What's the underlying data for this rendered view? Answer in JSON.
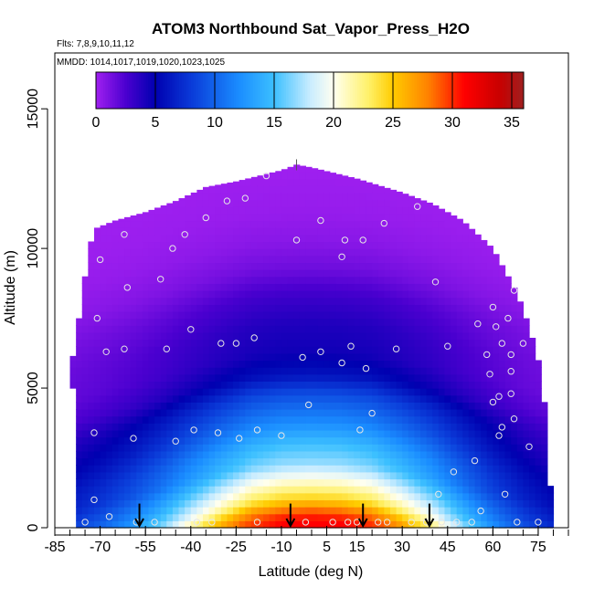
{
  "chart_data": {
    "type": "heatmap",
    "title": "ATOM3 Northbound Sat_Vapor_Press_H2O",
    "subtitle_flights": "Flts: 7,8,9,10,11,12",
    "subtitle_dates": "MMDD: 1014,1017,1019,1020,1023,1025",
    "xlabel": "Latitude (deg N)",
    "ylabel": "Altitude (m)",
    "xlim": [
      -85,
      85
    ],
    "ylim": [
      0,
      17000
    ],
    "x_ticks": [
      -85,
      -70,
      -55,
      -40,
      -25,
      -10,
      5,
      15,
      30,
      45,
      60,
      75
    ],
    "y_ticks": [
      0,
      5000,
      10000,
      15000
    ],
    "colorbar": {
      "range": [
        0,
        36
      ],
      "ticks": [
        0,
        5,
        10,
        15,
        20,
        25,
        30,
        35
      ],
      "stops": [
        {
          "value": 0,
          "color": "#a020f0"
        },
        {
          "value": 2.5,
          "color": "#4b00d0"
        },
        {
          "value": 5,
          "color": "#0000b0"
        },
        {
          "value": 8,
          "color": "#0a3ad8"
        },
        {
          "value": 12,
          "color": "#1a8cff"
        },
        {
          "value": 15,
          "color": "#3cc0ff"
        },
        {
          "value": 18,
          "color": "#c8ecff"
        },
        {
          "value": 20,
          "color": "#fffff0"
        },
        {
          "value": 23,
          "color": "#fff066"
        },
        {
          "value": 25,
          "color": "#ffcc00"
        },
        {
          "value": 28,
          "color": "#ff8000"
        },
        {
          "value": 31,
          "color": "#ff0000"
        },
        {
          "value": 34,
          "color": "#c80000"
        },
        {
          "value": 36,
          "color": "#a02020"
        }
      ]
    },
    "field_model": {
      "upper_boundary": [
        [
          -80,
          5500
        ],
        [
          -78,
          6800
        ],
        [
          -76,
          8200
        ],
        [
          -74,
          9800
        ],
        [
          -72,
          10700
        ],
        [
          -65,
          11000
        ],
        [
          -55,
          11300
        ],
        [
          -45,
          11700
        ],
        [
          -35,
          12200
        ],
        [
          -25,
          12400
        ],
        [
          -10,
          12800
        ],
        [
          -5,
          13000
        ],
        [
          0,
          12900
        ],
        [
          15,
          12500
        ],
        [
          30,
          12000
        ],
        [
          40,
          11600
        ],
        [
          50,
          11000
        ],
        [
          60,
          10000
        ],
        [
          68,
          8400
        ],
        [
          72,
          7200
        ],
        [
          75,
          6000
        ],
        [
          77,
          4500
        ],
        [
          78,
          3000
        ],
        [
          80,
          0
        ]
      ],
      "lower_limit_left": [
        [
          7000,
          -80
        ],
        [
          5500,
          -80
        ],
        [
          5000,
          -79
        ],
        [
          3500,
          -78
        ],
        [
          0,
          -77
        ]
      ],
      "equator_profile": [
        [
          0,
          31
        ],
        [
          300,
          29
        ],
        [
          700,
          25
        ],
        [
          1000,
          23
        ],
        [
          1500,
          20
        ],
        [
          2000,
          17
        ],
        [
          2700,
          15
        ],
        [
          3500,
          12
        ],
        [
          4500,
          9
        ],
        [
          5200,
          6
        ],
        [
          6000,
          4.5
        ],
        [
          7000,
          4
        ],
        [
          8000,
          3
        ],
        [
          9000,
          1.5
        ],
        [
          10000,
          0.7
        ],
        [
          11000,
          0.3
        ],
        [
          13000,
          0
        ]
      ],
      "latitude_scale": [
        [
          -80,
          0.4
        ],
        [
          -70,
          0.46
        ],
        [
          -60,
          0.54
        ],
        [
          -50,
          0.64
        ],
        [
          -40,
          0.76
        ],
        [
          -30,
          0.87
        ],
        [
          -20,
          0.95
        ],
        [
          -10,
          1.0
        ],
        [
          0,
          1.0
        ],
        [
          10,
          1.0
        ],
        [
          20,
          0.96
        ],
        [
          30,
          0.88
        ],
        [
          40,
          0.77
        ],
        [
          50,
          0.63
        ],
        [
          60,
          0.5
        ],
        [
          70,
          0.4
        ],
        [
          80,
          0.33
        ]
      ],
      "altitude_shift_m": [
        [
          -80,
          -1400
        ],
        [
          -60,
          -900
        ],
        [
          -40,
          -300
        ],
        [
          -20,
          200
        ],
        [
          0,
          300
        ],
        [
          20,
          200
        ],
        [
          40,
          -200
        ],
        [
          60,
          -700
        ],
        [
          80,
          -1200
        ]
      ]
    },
    "observation_points": [
      [
        -75,
        200
      ],
      [
        -72,
        1000
      ],
      [
        -72,
        3400
      ],
      [
        -71,
        7500
      ],
      [
        -70,
        9600
      ],
      [
        -68,
        6300
      ],
      [
        -67,
        400
      ],
      [
        -62,
        6400
      ],
      [
        -62,
        10500
      ],
      [
        -61,
        8600
      ],
      [
        -59,
        3200
      ],
      [
        -58,
        200
      ],
      [
        -52,
        200
      ],
      [
        -50,
        8900
      ],
      [
        -48,
        6400
      ],
      [
        -46,
        10000
      ],
      [
        -45,
        3100
      ],
      [
        -42,
        10500
      ],
      [
        -40,
        7100
      ],
      [
        -39,
        3500
      ],
      [
        -38,
        200
      ],
      [
        -35,
        11100
      ],
      [
        -33,
        200
      ],
      [
        -31,
        3400
      ],
      [
        -30,
        6600
      ],
      [
        -28,
        11700
      ],
      [
        -25,
        6600
      ],
      [
        -24,
        3200
      ],
      [
        -22,
        11800
      ],
      [
        -19,
        6800
      ],
      [
        -18,
        200
      ],
      [
        -18,
        3500
      ],
      [
        -15,
        12600
      ],
      [
        -10,
        3300
      ],
      [
        -5,
        10300
      ],
      [
        -3,
        6100
      ],
      [
        -2,
        200
      ],
      [
        -1,
        4400
      ],
      [
        3,
        11000
      ],
      [
        3,
        6300
      ],
      [
        7,
        200
      ],
      [
        10,
        5900
      ],
      [
        10,
        9700
      ],
      [
        11,
        10300
      ],
      [
        12,
        200
      ],
      [
        13,
        6500
      ],
      [
        15,
        200
      ],
      [
        16,
        3500
      ],
      [
        17,
        10300
      ],
      [
        18,
        5700
      ],
      [
        20,
        4100
      ],
      [
        22,
        200
      ],
      [
        24,
        10900
      ],
      [
        25,
        200
      ],
      [
        28,
        6400
      ],
      [
        33,
        200
      ],
      [
        35,
        11500
      ],
      [
        38,
        200
      ],
      [
        41,
        8800
      ],
      [
        42,
        1200
      ],
      [
        43,
        200
      ],
      [
        45,
        6500
      ],
      [
        47,
        2000
      ],
      [
        48,
        200
      ],
      [
        53,
        200
      ],
      [
        54,
        2400
      ],
      [
        55,
        7300
      ],
      [
        56,
        600
      ],
      [
        58,
        6200
      ],
      [
        59,
        5500
      ],
      [
        60,
        4500
      ],
      [
        60,
        7900
      ],
      [
        61,
        7200
      ],
      [
        62,
        3300
      ],
      [
        62,
        4700
      ],
      [
        63,
        6600
      ],
      [
        63,
        3600
      ],
      [
        64,
        1200
      ],
      [
        65,
        7500
      ],
      [
        66,
        6200
      ],
      [
        66,
        5600
      ],
      [
        66,
        4800
      ],
      [
        67,
        3900
      ],
      [
        67,
        8500
      ],
      [
        68,
        200
      ],
      [
        70,
        6600
      ],
      [
        72,
        2900
      ],
      [
        75,
        200
      ]
    ],
    "flight_markers": [
      {
        "latitude": -57,
        "altitude_m": 700
      },
      {
        "latitude": -7,
        "altitude_m": 700
      },
      {
        "latitude": 17,
        "altitude_m": 700
      },
      {
        "latitude": 39,
        "altitude_m": 700
      }
    ],
    "top_marker": {
      "latitude": -5,
      "altitude_m": 12800
    }
  }
}
